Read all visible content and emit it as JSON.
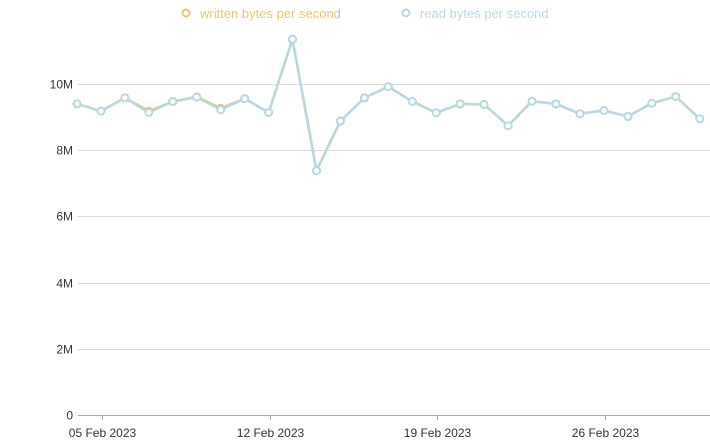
{
  "chart_data": {
    "type": "line",
    "title": "",
    "xlabel": "",
    "ylabel": "",
    "ylim": [
      0,
      11500000
    ],
    "grid": true,
    "legend_position": "top-center",
    "y_ticks": [
      {
        "value": 0,
        "label": "0"
      },
      {
        "value": 2000000,
        "label": "2M"
      },
      {
        "value": 4000000,
        "label": "4M"
      },
      {
        "value": 6000000,
        "label": "6M"
      },
      {
        "value": 8000000,
        "label": "8M"
      },
      {
        "value": 10000000,
        "label": "10M"
      }
    ],
    "x_ticks": [
      {
        "value": "2023-02-05",
        "label": "05 Feb 2023"
      },
      {
        "value": "2023-02-12",
        "label": "12 Feb 2023"
      },
      {
        "value": "2023-02-19",
        "label": "19 Feb 2023"
      },
      {
        "value": "2023-02-26",
        "label": "26 Feb 2023"
      }
    ],
    "x": [
      "2023-02-04",
      "2023-02-05",
      "2023-02-06",
      "2023-02-07",
      "2023-02-08",
      "2023-02-09",
      "2023-02-10",
      "2023-02-11",
      "2023-02-12",
      "2023-02-13",
      "2023-02-14",
      "2023-02-15",
      "2023-02-16",
      "2023-02-17",
      "2023-02-18",
      "2023-02-19",
      "2023-02-20",
      "2023-02-21",
      "2023-02-22",
      "2023-02-23",
      "2023-02-24",
      "2023-02-25",
      "2023-02-26",
      "2023-02-27",
      "2023-02-28",
      "2023-03-01",
      "2023-03-02",
      "2023-03-03"
    ],
    "series": [
      {
        "name": "written bytes per second",
        "color": "#e8c66a",
        "values": [
          9400000,
          9180000,
          9580000,
          9180000,
          9470000,
          9610000,
          9270000,
          9560000,
          9140000,
          11350000,
          7380000,
          8880000,
          9580000,
          9920000,
          9470000,
          9130000,
          9400000,
          9380000,
          8740000,
          9480000,
          9400000,
          9100000,
          9200000,
          9020000,
          9420000,
          9620000,
          8950000,
          null
        ]
      },
      {
        "name": "read bytes per second",
        "color": "#b8d8e4",
        "values": [
          9400000,
          9180000,
          9580000,
          9140000,
          9470000,
          9600000,
          9220000,
          9560000,
          9140000,
          11350000,
          7380000,
          8880000,
          9580000,
          9920000,
          9470000,
          9130000,
          9400000,
          9380000,
          8740000,
          9480000,
          9400000,
          9100000,
          9200000,
          9020000,
          9420000,
          9620000,
          8950000,
          null
        ]
      }
    ]
  }
}
